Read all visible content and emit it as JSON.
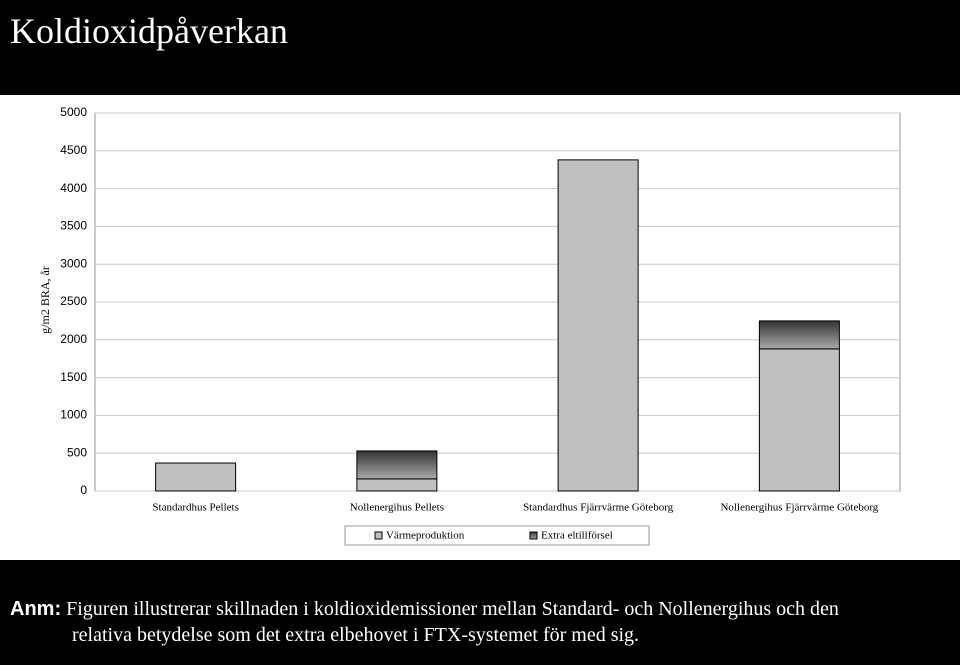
{
  "header": {
    "title": "Koldioxidpåverkan"
  },
  "chart_data": {
    "type": "stacked-bar",
    "ylabel": "g/m2 BRA, år",
    "categories": [
      "Standardhus Pellets",
      "Nollenergihus Pellets",
      "Standardhus Fjärrvärme Göteborg",
      "Nollenergihus Fjärrvärme Göteborg"
    ],
    "series": [
      {
        "name": "Värmeproduktion",
        "color": "#c0c0c0",
        "values": [
          370,
          160,
          4380,
          1880
        ]
      },
      {
        "name": "Extra eltillförsel",
        "color": "#333333",
        "values": [
          null,
          370,
          null,
          370
        ]
      }
    ],
    "ylim": [
      0,
      5000
    ],
    "yticks": [
      0,
      500,
      1000,
      1500,
      2000,
      2500,
      3000,
      3500,
      4000,
      4500,
      5000
    ],
    "grid": true,
    "legend": "bottom"
  },
  "note": {
    "label": "Anm:",
    "lines": [
      "Figuren illustrerar skillnaden i koldioxidemissioner mellan Standard- och Nollenergihus och den",
      "relativa betydelse som det extra elbehovet i FTX-systemet för med sig."
    ]
  }
}
